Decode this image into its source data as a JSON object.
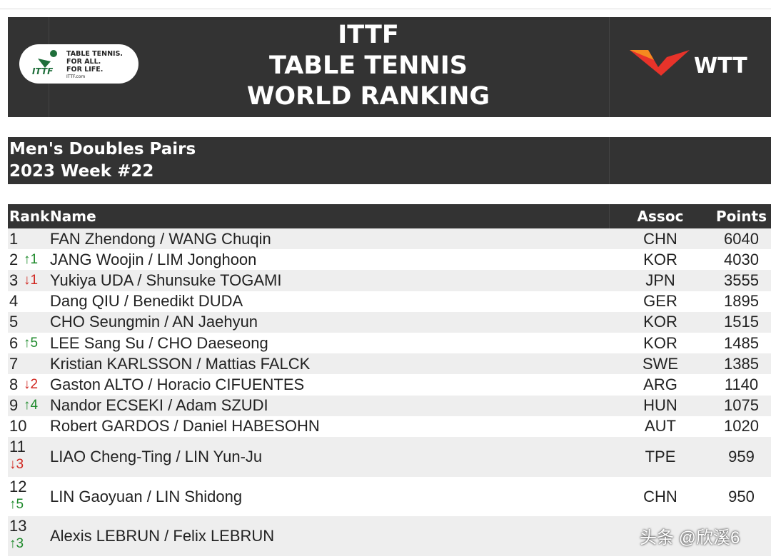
{
  "header": {
    "title_lines": [
      "ITTF",
      "TABLE TENNIS",
      "WORLD RANKING"
    ],
    "ittf_logo": {
      "lines": [
        "TABLE TENNIS.",
        "FOR ALL.",
        "FOR LIFE."
      ],
      "site": "ITTF.com",
      "mark": "ITTF"
    },
    "wtt_logo": "WTT"
  },
  "subheader": {
    "lines": [
      "Men's Doubles Pairs",
      "2023 Week #22"
    ]
  },
  "table": {
    "columns": [
      "Rank",
      "Name",
      "Assoc",
      "Points"
    ],
    "rows": [
      {
        "rank": "1",
        "change": null,
        "change_color": null,
        "name": "FAN Zhendong / WANG Chuqin",
        "assoc": "CHN",
        "points": 6040
      },
      {
        "rank": "2",
        "change": "↑1",
        "change_color": "#1f8a2c",
        "name": "JANG Woojin / LIM Jonghoon",
        "assoc": "KOR",
        "points": 4030
      },
      {
        "rank": "3",
        "change": "↓1",
        "change_color": "#d0261f",
        "name": "Yukiya UDA / Shunsuke TOGAMI",
        "assoc": "JPN",
        "points": 3555
      },
      {
        "rank": "4",
        "change": null,
        "change_color": null,
        "name": "Dang QIU / Benedikt DUDA",
        "assoc": "GER",
        "points": 1895
      },
      {
        "rank": "5",
        "change": null,
        "change_color": null,
        "name": "CHO Seungmin / AN Jaehyun",
        "assoc": "KOR",
        "points": 1515
      },
      {
        "rank": "6",
        "change": "↑5",
        "change_color": "#1f8a2c",
        "name": "LEE Sang Su / CHO Daeseong",
        "assoc": "KOR",
        "points": 1485
      },
      {
        "rank": "7",
        "change": null,
        "change_color": null,
        "name": "Kristian KARLSSON / Mattias FALCK",
        "assoc": "SWE",
        "points": 1385
      },
      {
        "rank": "8",
        "change": "↓2",
        "change_color": "#d0261f",
        "name": "Gaston ALTO / Horacio CIFUENTES",
        "assoc": "ARG",
        "points": 1140
      },
      {
        "rank": "9",
        "change": "↑4",
        "change_color": "#1f8a2c",
        "name": "Nandor ECSEKI / Adam SZUDI",
        "assoc": "HUN",
        "points": 1075
      },
      {
        "rank": "10",
        "change": null,
        "change_color": null,
        "name": "Robert GARDOS / Daniel HABESOHN",
        "assoc": "AUT",
        "points": 1020
      },
      {
        "rank": "11",
        "change": "↓3",
        "change_color": "#d0261f",
        "name": "LIAO Cheng-Ting / LIN Yun-Ju",
        "assoc": "TPE",
        "points": 959
      },
      {
        "rank": "12",
        "change": "↑5",
        "change_color": "#1f8a2c",
        "name": "LIN Gaoyuan / LIN Shidong",
        "assoc": "CHN",
        "points": 950
      },
      {
        "rank": "13",
        "change": "↑3",
        "change_color": "#1f8a2c",
        "name": "Alexis LEBRUN / Felix LEBRUN",
        "assoc": null,
        "points": null
      }
    ]
  },
  "watermark": "头条 @欣溪6"
}
